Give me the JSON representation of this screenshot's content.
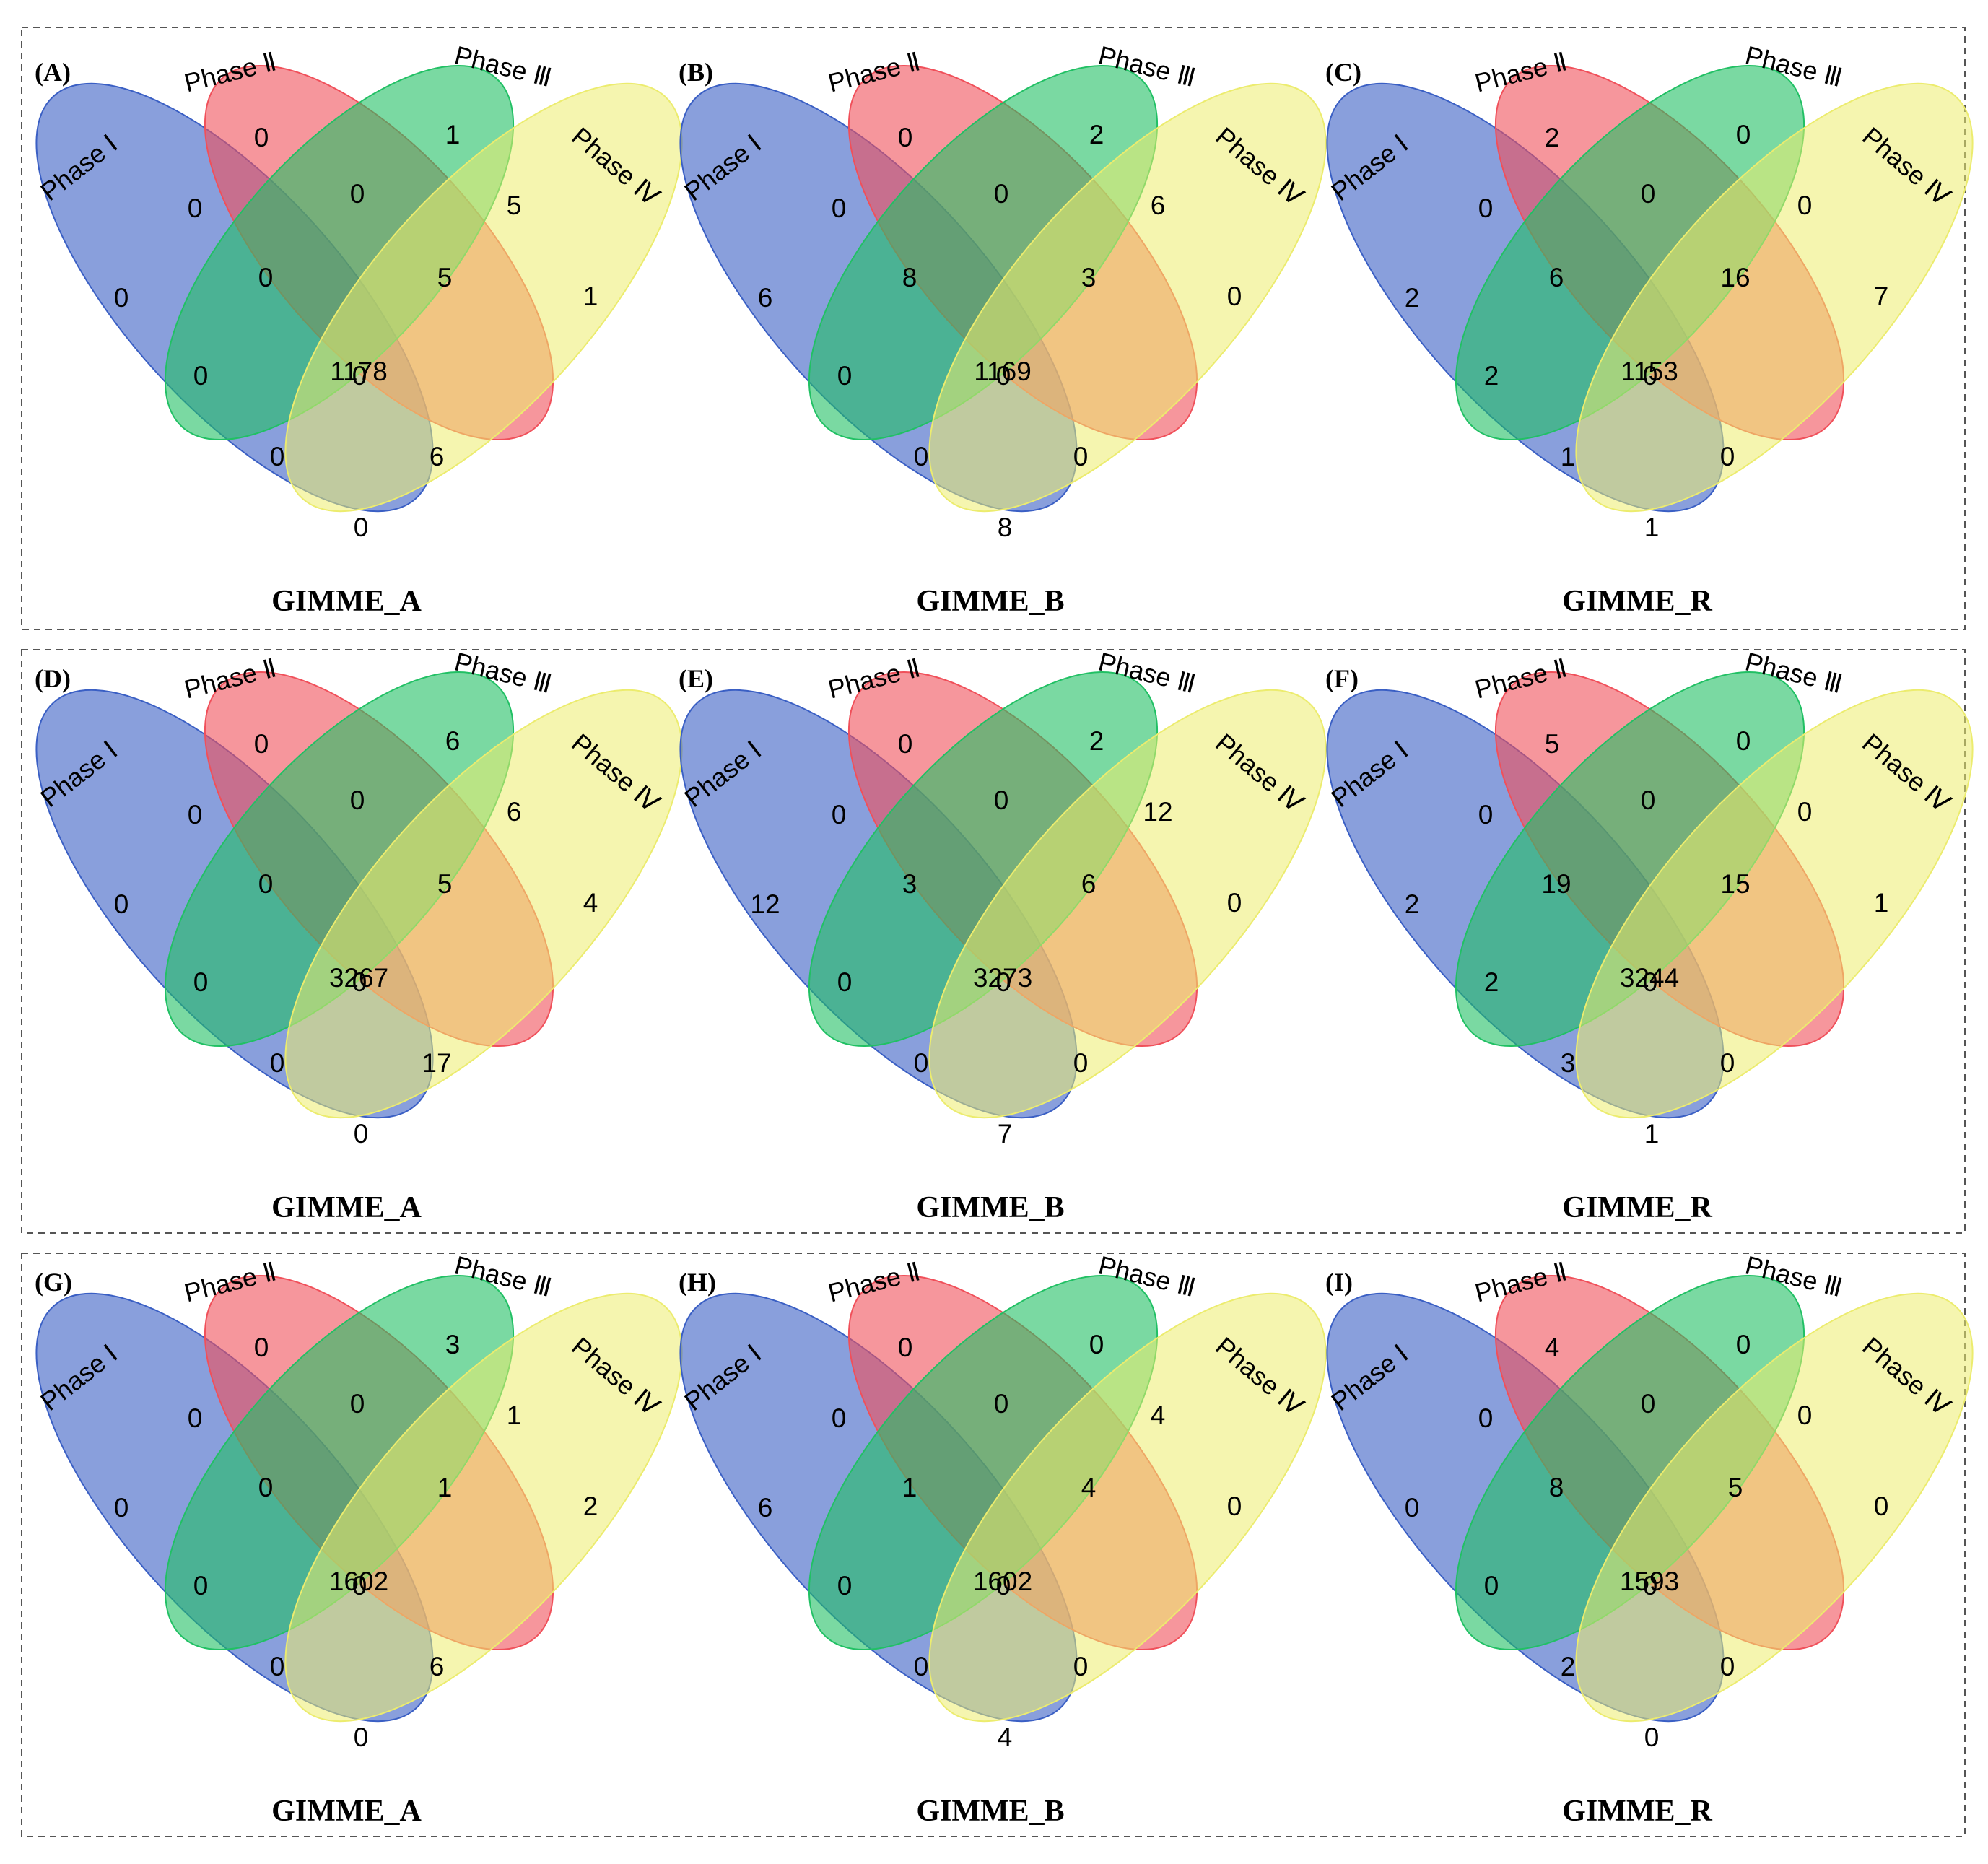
{
  "colors": {
    "phase_I": "#3a5fc4",
    "phase_II": "#f0505a",
    "phase_III": "#21c064",
    "phase_IV": "#ecec6e"
  },
  "set_labels": [
    "Phase Ⅰ",
    "Phase Ⅱ",
    "Phase Ⅲ",
    "Phase Ⅳ"
  ],
  "region_order": [
    "I",
    "II",
    "III",
    "IV",
    "I∩II",
    "II∩III",
    "III∩IV",
    "I∩III",
    "II∩IV",
    "I∩II∩III",
    "II∩III∩IV",
    "I∩II∩III∩IV",
    "I∩III∩IV",
    "I∩II∩IV",
    "I∩IV"
  ],
  "panels": [
    {
      "letter": "(A)",
      "model": "GIMME_A",
      "counts": [
        0,
        0,
        1,
        1,
        0,
        0,
        5,
        0,
        0,
        0,
        5,
        1178,
        0,
        6,
        0
      ]
    },
    {
      "letter": "(B)",
      "model": "GIMME_B",
      "counts": [
        6,
        0,
        2,
        0,
        0,
        0,
        6,
        0,
        0,
        8,
        3,
        1169,
        0,
        0,
        8
      ]
    },
    {
      "letter": "(C)",
      "model": "GIMME_R",
      "counts": [
        2,
        2,
        0,
        7,
        0,
        0,
        0,
        2,
        0,
        6,
        16,
        1153,
        1,
        0,
        1
      ]
    },
    {
      "letter": "(D)",
      "model": "GIMME_A",
      "counts": [
        0,
        0,
        6,
        4,
        0,
        0,
        6,
        0,
        0,
        0,
        5,
        3267,
        0,
        17,
        0
      ]
    },
    {
      "letter": "(E)",
      "model": "GIMME_B",
      "counts": [
        12,
        0,
        2,
        0,
        0,
        0,
        12,
        0,
        0,
        3,
        6,
        3273,
        0,
        0,
        7
      ]
    },
    {
      "letter": "(F)",
      "model": "GIMME_R",
      "counts": [
        2,
        5,
        0,
        1,
        0,
        0,
        0,
        2,
        0,
        19,
        15,
        3244,
        3,
        0,
        1
      ]
    },
    {
      "letter": "(G)",
      "model": "GIMME_A",
      "counts": [
        0,
        0,
        3,
        2,
        0,
        0,
        1,
        0,
        0,
        0,
        1,
        1602,
        0,
        6,
        0
      ]
    },
    {
      "letter": "(H)",
      "model": "GIMME_B",
      "counts": [
        6,
        0,
        0,
        0,
        0,
        0,
        4,
        0,
        0,
        1,
        4,
        1602,
        0,
        0,
        4
      ]
    },
    {
      "letter": "(I)",
      "model": "GIMME_R",
      "counts": [
        0,
        4,
        0,
        0,
        0,
        0,
        0,
        0,
        0,
        8,
        5,
        1593,
        2,
        0,
        0
      ]
    }
  ]
}
